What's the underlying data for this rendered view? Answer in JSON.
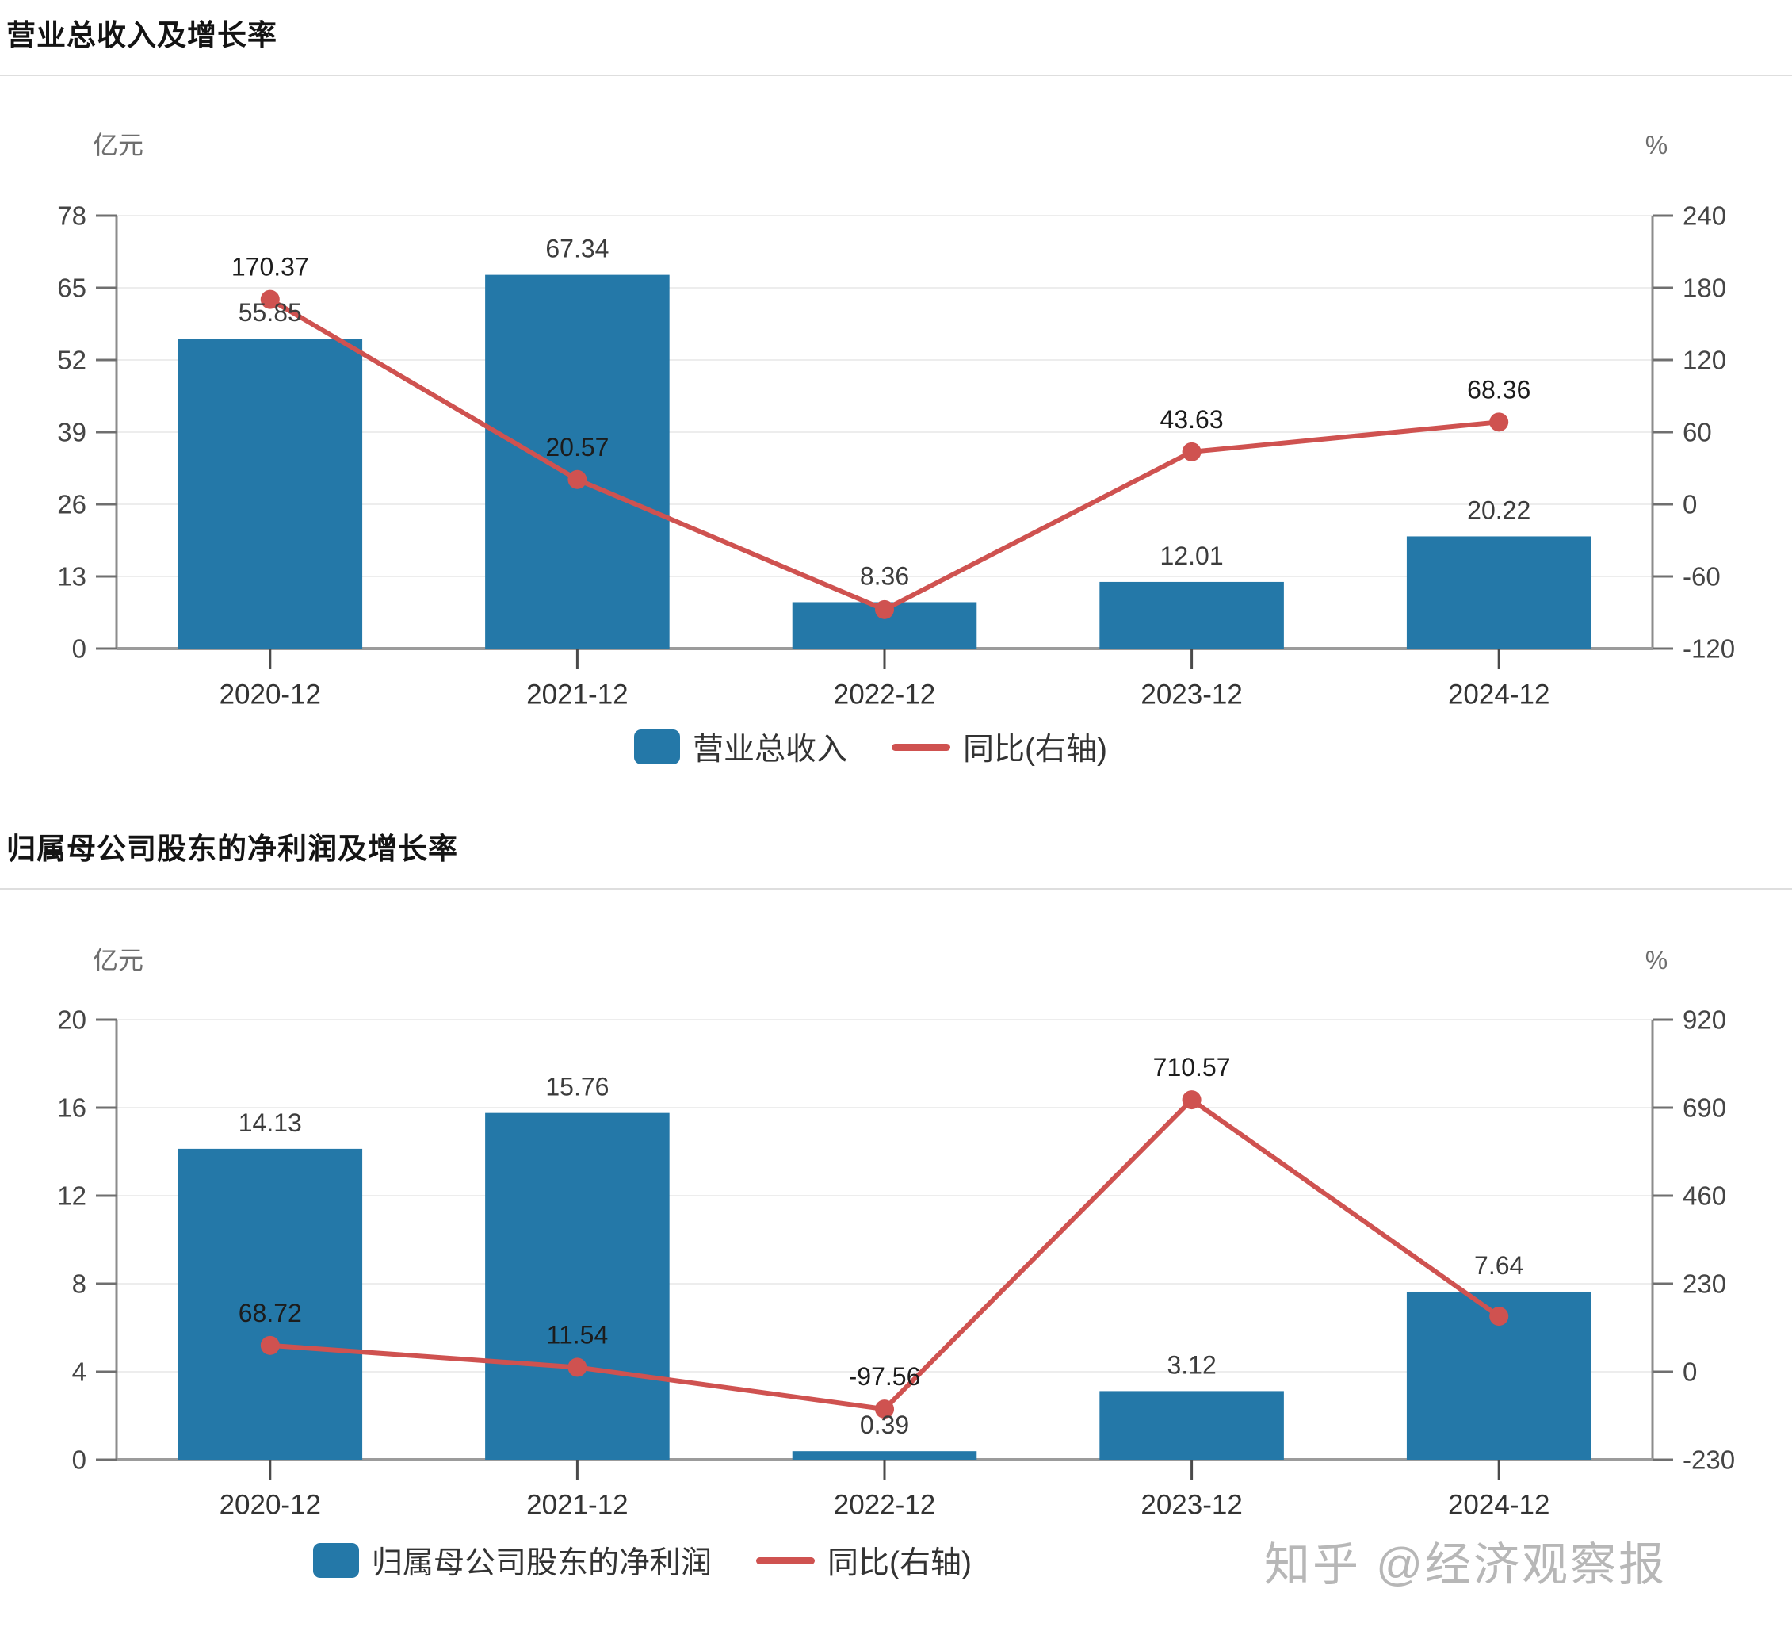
{
  "watermark": "知乎 @经济观察报",
  "palette": {
    "bar": "#2478a8",
    "line": "#cf5250",
    "grid": "#ededed",
    "axis": "#8c8c8c",
    "x_axis": "#9b9b9b",
    "tick_label": "#454545",
    "unit_label": "#6e6e6e",
    "bar_label": "#3c3c3c",
    "line_label": "#1c1c1c",
    "x_label": "#333333"
  },
  "chart_data": [
    {
      "type": "bar+line",
      "title": "营业总收入及增长率",
      "categories": [
        "2020-12",
        "2021-12",
        "2022-12",
        "2023-12",
        "2024-12"
      ],
      "left_axis": {
        "unit": "亿元",
        "ticks": [
          78,
          65,
          52,
          39,
          26,
          13,
          0
        ],
        "range": [
          0,
          78
        ]
      },
      "right_axis": {
        "unit": "%",
        "ticks": [
          240,
          180,
          120,
          60,
          0,
          -60,
          -120
        ],
        "range": [
          -120,
          240
        ]
      },
      "series": [
        {
          "name": "营业总收入",
          "type": "bar",
          "axis": "left",
          "values": [
            55.85,
            67.34,
            8.36,
            12.01,
            20.22
          ],
          "labels": [
            "55.85",
            "67.34",
            "8.36",
            "12.01",
            "20.22"
          ]
        },
        {
          "name": "同比(右轴)",
          "type": "line",
          "axis": "right",
          "values": [
            170.37,
            20.57,
            -87.59,
            43.63,
            68.36
          ],
          "labels": [
            "170.37",
            "20.57",
            "",
            "43.63",
            "68.36"
          ]
        }
      ],
      "legend": [
        "营业总收入",
        "同比(右轴)"
      ]
    },
    {
      "type": "bar+line",
      "title": "归属母公司股东的净利润及增长率",
      "categories": [
        "2020-12",
        "2021-12",
        "2022-12",
        "2023-12",
        "2024-12"
      ],
      "left_axis": {
        "unit": "亿元",
        "ticks": [
          20,
          16,
          12,
          8,
          4,
          0
        ],
        "range": [
          0,
          20
        ]
      },
      "right_axis": {
        "unit": "%",
        "ticks": [
          920,
          690,
          460,
          230,
          0,
          -230
        ],
        "range": [
          -230,
          920
        ]
      },
      "series": [
        {
          "name": "归属母公司股东的净利润",
          "type": "bar",
          "axis": "left",
          "values": [
            14.13,
            15.76,
            0.39,
            3.12,
            7.64
          ],
          "labels": [
            "14.13",
            "15.76",
            "0.39",
            "3.12",
            "7.64"
          ]
        },
        {
          "name": "同比(右轴)",
          "type": "line",
          "axis": "right",
          "values": [
            68.72,
            11.54,
            -97.56,
            710.57,
            144.87
          ],
          "labels": [
            "68.72",
            "11.54",
            "-97.56",
            "710.57",
            ""
          ]
        }
      ],
      "legend": [
        "归属母公司股东的净利润",
        "同比(右轴)"
      ]
    }
  ]
}
